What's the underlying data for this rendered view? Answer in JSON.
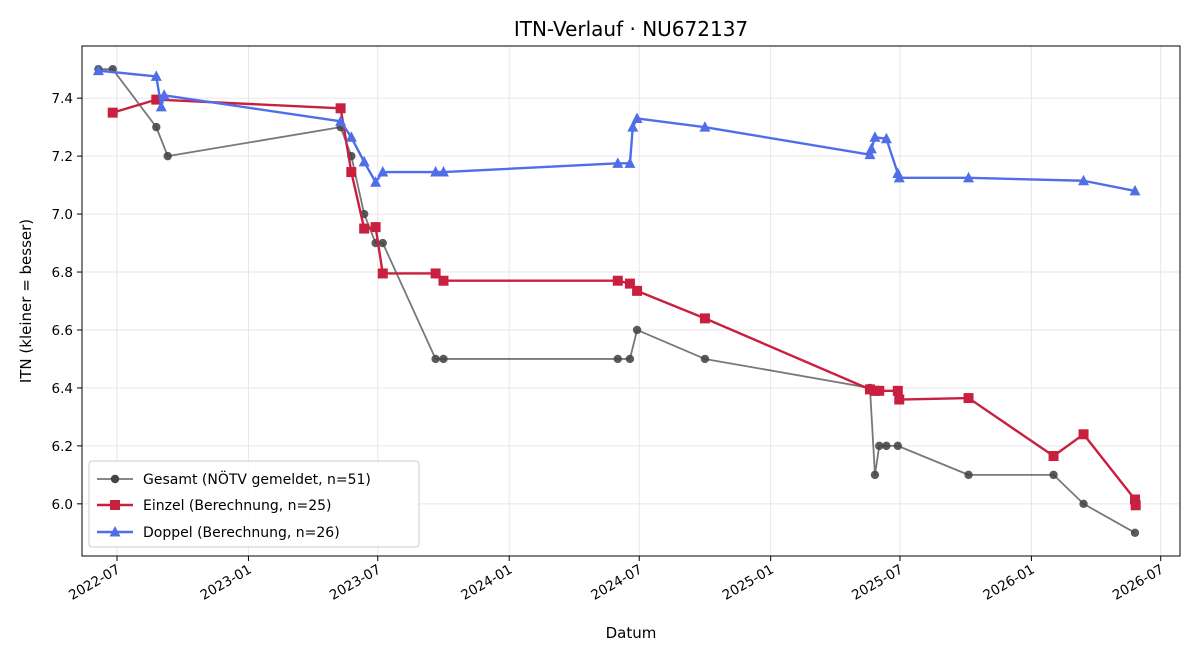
{
  "chart_data": {
    "type": "line",
    "title": "ITN-Verlauf · NU672137",
    "xlabel": "Datum",
    "ylabel": "ITN  (kleiner = besser)",
    "x_axis_type": "date",
    "xlim": [
      "2022-05-13",
      "2026-07-28"
    ],
    "ylim": [
      5.82,
      7.58
    ],
    "x_ticks": [
      "2022-07-01",
      "2023-01-01",
      "2023-07-01",
      "2024-01-01",
      "2024-07-01",
      "2025-01-01",
      "2025-07-01",
      "2026-01-01",
      "2026-07-01"
    ],
    "x_tick_labels": [
      "2022-07",
      "2023-01",
      "2023-07",
      "2024-01",
      "2024-07",
      "2025-01",
      "2025-07",
      "2026-01",
      "2026-07"
    ],
    "y_ticks": [
      6.0,
      6.2,
      6.4,
      6.6,
      6.8,
      7.0,
      7.2,
      7.4
    ],
    "y_tick_labels": [
      "6.0",
      "6.2",
      "6.4",
      "6.6",
      "6.8",
      "7.0",
      "7.2",
      "7.4"
    ],
    "grid": true,
    "legend_position": "bottom-left",
    "series": [
      {
        "name": "Gesamt (NÖTV gemeldet, n=51)",
        "color": "#444444",
        "marker": "circle",
        "points": [
          [
            "2022-06-05",
            7.5
          ],
          [
            "2022-06-25",
            7.5
          ],
          [
            "2022-08-25",
            7.3
          ],
          [
            "2022-09-10",
            7.2
          ],
          [
            "2023-05-10",
            7.3
          ],
          [
            "2023-05-25",
            7.2
          ],
          [
            "2023-06-12",
            7.0
          ],
          [
            "2023-06-28",
            6.9
          ],
          [
            "2023-07-08",
            6.9
          ],
          [
            "2023-09-20",
            6.5
          ],
          [
            "2023-10-01",
            6.5
          ],
          [
            "2024-06-01",
            6.5
          ],
          [
            "2024-06-18",
            6.5
          ],
          [
            "2024-06-28",
            6.6
          ],
          [
            "2024-10-01",
            6.5
          ],
          [
            "2025-05-20",
            6.4
          ],
          [
            "2025-05-27",
            6.1
          ],
          [
            "2025-06-02",
            6.2
          ],
          [
            "2025-06-12",
            6.2
          ],
          [
            "2025-06-28",
            6.2
          ],
          [
            "2025-10-05",
            6.1
          ],
          [
            "2026-02-01",
            6.1
          ],
          [
            "2026-03-15",
            6.0
          ],
          [
            "2026-05-26",
            5.9
          ]
        ]
      },
      {
        "name": "Einzel (Berechnung, n=25)",
        "color": "#c8203e",
        "marker": "square",
        "points": [
          [
            "2022-06-25",
            7.35
          ],
          [
            "2022-08-25",
            7.395
          ],
          [
            "2023-05-10",
            7.365
          ],
          [
            "2023-05-25",
            7.145
          ],
          [
            "2023-06-12",
            6.95
          ],
          [
            "2023-06-28",
            6.955
          ],
          [
            "2023-07-08",
            6.795
          ],
          [
            "2023-09-20",
            6.795
          ],
          [
            "2023-10-01",
            6.77
          ],
          [
            "2024-06-01",
            6.77
          ],
          [
            "2024-06-18",
            6.76
          ],
          [
            "2024-06-28",
            6.735
          ],
          [
            "2024-10-01",
            6.64
          ],
          [
            "2025-05-20",
            6.395
          ],
          [
            "2025-05-27",
            6.39
          ],
          [
            "2025-06-02",
            6.39
          ],
          [
            "2025-06-28",
            6.39
          ],
          [
            "2025-06-30",
            6.36
          ],
          [
            "2025-10-05",
            6.365
          ],
          [
            "2026-02-01",
            6.165
          ],
          [
            "2026-03-15",
            6.24
          ],
          [
            "2026-05-26",
            6.015
          ],
          [
            "2026-05-27",
            5.995
          ]
        ]
      },
      {
        "name": "Doppel (Berechnung, n=26)",
        "color": "#4f6ee8",
        "marker": "triangle",
        "points": [
          [
            "2022-06-05",
            7.495
          ],
          [
            "2022-08-25",
            7.475
          ],
          [
            "2022-09-01",
            7.37
          ],
          [
            "2022-09-05",
            7.41
          ],
          [
            "2023-05-10",
            7.32
          ],
          [
            "2023-05-25",
            7.265
          ],
          [
            "2023-06-12",
            7.18
          ],
          [
            "2023-06-28",
            7.11
          ],
          [
            "2023-07-08",
            7.145
          ],
          [
            "2023-09-20",
            7.145
          ],
          [
            "2023-10-01",
            7.145
          ],
          [
            "2024-06-01",
            7.175
          ],
          [
            "2024-06-18",
            7.175
          ],
          [
            "2024-06-22",
            7.3
          ],
          [
            "2024-06-28",
            7.33
          ],
          [
            "2024-10-01",
            7.3
          ],
          [
            "2025-05-20",
            7.205
          ],
          [
            "2025-05-22",
            7.225
          ],
          [
            "2025-05-27",
            7.265
          ],
          [
            "2025-06-12",
            7.26
          ],
          [
            "2025-06-28",
            7.14
          ],
          [
            "2025-06-30",
            7.125
          ],
          [
            "2025-10-05",
            7.125
          ],
          [
            "2026-03-15",
            7.115
          ],
          [
            "2026-05-26",
            7.08
          ]
        ]
      }
    ]
  }
}
